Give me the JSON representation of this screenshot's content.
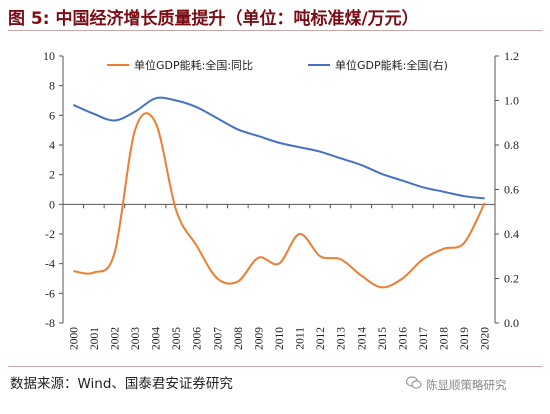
{
  "title": "图 5: 中国经济增长质量提升（单位：吨标准煤/万元）",
  "source": "数据来源：Wind、国泰君安证券研究",
  "watermark": "陈显顺策略研究",
  "colors": {
    "title": "#7a0c14",
    "orange": "#ed7d31",
    "blue": "#4472c4",
    "axis": "#555555"
  },
  "chart_data": {
    "type": "line",
    "x": [
      "2000",
      "2001",
      "2002",
      "2003",
      "2004",
      "2005",
      "2006",
      "2007",
      "2008",
      "2009",
      "2010",
      "2011",
      "2012",
      "2013",
      "2014",
      "2015",
      "2016",
      "2017",
      "2018",
      "2019",
      "2020"
    ],
    "ylim_left": [
      -8,
      10
    ],
    "yticks_left": [
      10,
      8,
      6,
      4,
      2,
      0,
      -2,
      -4,
      -6,
      -8
    ],
    "ylim_right": [
      0.0,
      1.2
    ],
    "yticks_right": [
      "1.2",
      "1.0",
      "0.8",
      "0.6",
      "0.4",
      "0.2",
      "0.0"
    ],
    "legend_position": "top",
    "series": [
      {
        "name": "单位GDP能耗:全国:同比",
        "axis": "left",
        "color": "#ed7d31",
        "values": [
          -4.5,
          -4.6,
          -3.3,
          5.0,
          5.5,
          -0.4,
          -2.8,
          -5.0,
          -5.2,
          -3.6,
          -4.0,
          -2.0,
          -3.5,
          -3.7,
          -4.8,
          -5.6,
          -5.0,
          -3.7,
          -3.0,
          -2.6,
          0.1
        ]
      },
      {
        "name": "单位GDP能耗:全国(右)",
        "axis": "right",
        "color": "#4472c4",
        "values": [
          0.98,
          0.94,
          0.91,
          0.95,
          1.01,
          1.0,
          0.97,
          0.92,
          0.87,
          0.84,
          0.81,
          0.79,
          0.77,
          0.74,
          0.71,
          0.67,
          0.64,
          0.61,
          0.59,
          0.57,
          0.56
        ]
      }
    ]
  }
}
